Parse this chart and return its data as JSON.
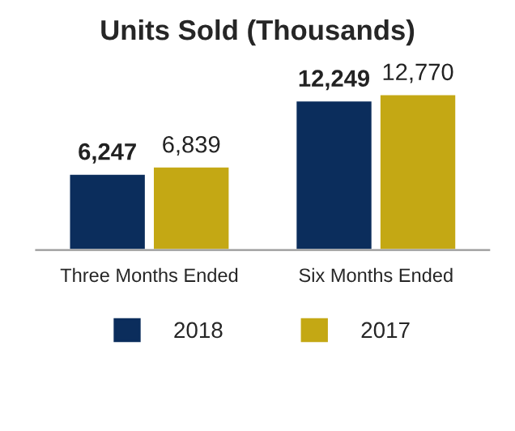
{
  "chart_data": {
    "type": "bar",
    "title": "Units Sold (Thousands)",
    "categories": [
      "Three Months Ended",
      "Six Months Ended"
    ],
    "series": [
      {
        "name": "2018",
        "color": "#0b2d5c",
        "values": [
          6247,
          12249
        ],
        "value_labels": [
          "6,247",
          "12,249"
        ]
      },
      {
        "name": "2017",
        "color": "#c4a814",
        "values": [
          6839,
          12770
        ],
        "value_labels": [
          "6,839",
          "12,770"
        ]
      }
    ],
    "legend": "bottom",
    "grid": false,
    "tick_labels": "x"
  }
}
